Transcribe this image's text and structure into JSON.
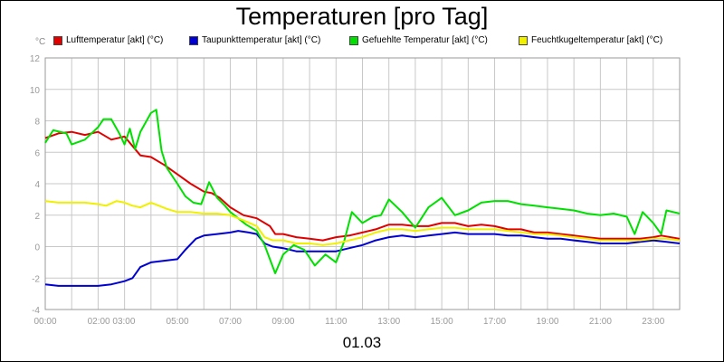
{
  "chart_data": {
    "type": "line",
    "title": "Temperaturen [pro Tag]",
    "date": "01.03",
    "ylabel": "°C",
    "ylim": [
      -4,
      12
    ],
    "yticks": [
      -4,
      -2,
      0,
      2,
      4,
      6,
      8,
      10,
      12
    ],
    "xlim": [
      0,
      24
    ],
    "xtick_labels": [
      {
        "x": 0,
        "label": "00:00"
      },
      {
        "x": 2.5,
        "label": "02:00 03:00"
      },
      {
        "x": 5,
        "label": "05:00"
      },
      {
        "x": 7,
        "label": "07:00"
      },
      {
        "x": 9,
        "label": "09:00"
      },
      {
        "x": 11,
        "label": "11:00"
      },
      {
        "x": 13,
        "label": "13:00"
      },
      {
        "x": 15,
        "label": "15:00"
      },
      {
        "x": 17,
        "label": "17:00"
      },
      {
        "x": 19,
        "label": "19:00"
      },
      {
        "x": 21,
        "label": "21:00"
      },
      {
        "x": 23,
        "label": "23:00"
      }
    ],
    "grid": true,
    "legend_position": "top",
    "series": [
      {
        "name": "Lufttemperatur [akt] (°C)",
        "color": "#e00000",
        "points": [
          [
            0,
            6.9
          ],
          [
            0.5,
            7.2
          ],
          [
            1,
            7.3
          ],
          [
            1.5,
            7.1
          ],
          [
            2,
            7.3
          ],
          [
            2.5,
            6.8
          ],
          [
            3,
            7
          ],
          [
            3.3,
            6.4
          ],
          [
            3.6,
            5.8
          ],
          [
            4,
            5.7
          ],
          [
            4.5,
            5.2
          ],
          [
            5,
            4.6
          ],
          [
            5.5,
            4
          ],
          [
            6,
            3.5
          ],
          [
            6.3,
            3.4
          ],
          [
            6.6,
            3.1
          ],
          [
            7,
            2.5
          ],
          [
            7.5,
            2
          ],
          [
            8,
            1.8
          ],
          [
            8.5,
            1.3
          ],
          [
            8.7,
            0.8
          ],
          [
            9,
            0.8
          ],
          [
            9.5,
            0.6
          ],
          [
            10,
            0.5
          ],
          [
            10.5,
            0.4
          ],
          [
            11,
            0.6
          ],
          [
            11.5,
            0.7
          ],
          [
            12,
            0.9
          ],
          [
            12.5,
            1.1
          ],
          [
            13,
            1.4
          ],
          [
            13.5,
            1.4
          ],
          [
            14,
            1.3
          ],
          [
            14.5,
            1.3
          ],
          [
            15,
            1.5
          ],
          [
            15.5,
            1.5
          ],
          [
            16,
            1.3
          ],
          [
            16.5,
            1.4
          ],
          [
            17,
            1.3
          ],
          [
            17.5,
            1.1
          ],
          [
            18,
            1.1
          ],
          [
            18.5,
            0.9
          ],
          [
            19,
            0.9
          ],
          [
            19.5,
            0.8
          ],
          [
            20,
            0.7
          ],
          [
            20.5,
            0.6
          ],
          [
            21,
            0.5
          ],
          [
            21.5,
            0.5
          ],
          [
            22,
            0.5
          ],
          [
            22.5,
            0.5
          ],
          [
            23,
            0.6
          ],
          [
            23.3,
            0.7
          ],
          [
            24,
            0.5
          ]
        ]
      },
      {
        "name": "Taupunkttemperatur [akt] (°C)",
        "color": "#0000d0",
        "points": [
          [
            0,
            -2.4
          ],
          [
            0.5,
            -2.5
          ],
          [
            1,
            -2.5
          ],
          [
            1.5,
            -2.5
          ],
          [
            2,
            -2.5
          ],
          [
            2.5,
            -2.4
          ],
          [
            3,
            -2.2
          ],
          [
            3.3,
            -2
          ],
          [
            3.6,
            -1.3
          ],
          [
            4,
            -1
          ],
          [
            4.5,
            -0.9
          ],
          [
            5,
            -0.8
          ],
          [
            5.3,
            -0.2
          ],
          [
            5.7,
            0.5
          ],
          [
            6,
            0.7
          ],
          [
            6.5,
            0.8
          ],
          [
            7,
            0.9
          ],
          [
            7.3,
            1
          ],
          [
            7.7,
            0.9
          ],
          [
            8,
            0.8
          ],
          [
            8.3,
            0.2
          ],
          [
            8.6,
            0
          ],
          [
            9,
            -0.1
          ],
          [
            9.5,
            -0.3
          ],
          [
            10,
            -0.3
          ],
          [
            10.5,
            -0.3
          ],
          [
            11,
            -0.3
          ],
          [
            11.5,
            -0.1
          ],
          [
            12,
            0.1
          ],
          [
            12.5,
            0.4
          ],
          [
            13,
            0.6
          ],
          [
            13.5,
            0.7
          ],
          [
            14,
            0.6
          ],
          [
            14.5,
            0.7
          ],
          [
            15,
            0.8
          ],
          [
            15.5,
            0.9
          ],
          [
            16,
            0.8
          ],
          [
            16.5,
            0.8
          ],
          [
            17,
            0.8
          ],
          [
            17.5,
            0.7
          ],
          [
            18,
            0.7
          ],
          [
            18.5,
            0.6
          ],
          [
            19,
            0.5
          ],
          [
            19.5,
            0.5
          ],
          [
            20,
            0.4
          ],
          [
            20.5,
            0.3
          ],
          [
            21,
            0.2
          ],
          [
            21.5,
            0.2
          ],
          [
            22,
            0.2
          ],
          [
            22.5,
            0.3
          ],
          [
            23,
            0.4
          ],
          [
            23.5,
            0.3
          ],
          [
            24,
            0.2
          ]
        ]
      },
      {
        "name": "Gefuehlte Temperatur [akt] (°C)",
        "color": "#00e000",
        "points": [
          [
            0,
            6.6
          ],
          [
            0.3,
            7.4
          ],
          [
            0.8,
            7.2
          ],
          [
            1,
            6.5
          ],
          [
            1.5,
            6.8
          ],
          [
            2,
            7.6
          ],
          [
            2.2,
            8.1
          ],
          [
            2.5,
            8.1
          ],
          [
            2.8,
            7.2
          ],
          [
            3,
            6.5
          ],
          [
            3.2,
            7.5
          ],
          [
            3.4,
            6.2
          ],
          [
            3.6,
            7.3
          ],
          [
            4,
            8.5
          ],
          [
            4.2,
            8.7
          ],
          [
            4.4,
            6.1
          ],
          [
            4.6,
            5
          ],
          [
            5,
            4
          ],
          [
            5.3,
            3.2
          ],
          [
            5.6,
            2.8
          ],
          [
            5.9,
            2.7
          ],
          [
            6.2,
            4.1
          ],
          [
            6.5,
            3.1
          ],
          [
            6.8,
            2.6
          ],
          [
            7,
            2.2
          ],
          [
            7.3,
            1.8
          ],
          [
            7.6,
            1.4
          ],
          [
            8,
            1
          ],
          [
            8.3,
            0.1
          ],
          [
            8.7,
            -1.7
          ],
          [
            9,
            -0.5
          ],
          [
            9.4,
            0.1
          ],
          [
            9.8,
            -0.2
          ],
          [
            10.2,
            -1.2
          ],
          [
            10.6,
            -0.5
          ],
          [
            11,
            -1
          ],
          [
            11.3,
            0.3
          ],
          [
            11.6,
            2.2
          ],
          [
            12,
            1.5
          ],
          [
            12.4,
            1.9
          ],
          [
            12.7,
            2
          ],
          [
            13,
            3
          ],
          [
            13.5,
            2.2
          ],
          [
            14,
            1.2
          ],
          [
            14.5,
            2.5
          ],
          [
            15,
            3.1
          ],
          [
            15.5,
            2
          ],
          [
            16,
            2.3
          ],
          [
            16.5,
            2.8
          ],
          [
            17,
            2.9
          ],
          [
            17.5,
            2.9
          ],
          [
            18,
            2.7
          ],
          [
            18.5,
            2.6
          ],
          [
            19,
            2.5
          ],
          [
            19.5,
            2.4
          ],
          [
            20,
            2.3
          ],
          [
            20.5,
            2.1
          ],
          [
            21,
            2
          ],
          [
            21.5,
            2.1
          ],
          [
            22,
            1.9
          ],
          [
            22.3,
            0.8
          ],
          [
            22.6,
            2.2
          ],
          [
            23,
            1.5
          ],
          [
            23.3,
            0.8
          ],
          [
            23.5,
            2.3
          ],
          [
            24,
            2.1
          ]
        ]
      },
      {
        "name": "Feuchtkugeltemperatur [akt] (°C)",
        "color": "#f0f000",
        "points": [
          [
            0,
            2.9
          ],
          [
            0.5,
            2.8
          ],
          [
            1,
            2.8
          ],
          [
            1.5,
            2.8
          ],
          [
            2,
            2.7
          ],
          [
            2.3,
            2.6
          ],
          [
            2.7,
            2.9
          ],
          [
            3,
            2.8
          ],
          [
            3.3,
            2.6
          ],
          [
            3.6,
            2.5
          ],
          [
            4,
            2.8
          ],
          [
            4.3,
            2.6
          ],
          [
            4.6,
            2.4
          ],
          [
            5,
            2.2
          ],
          [
            5.5,
            2.2
          ],
          [
            6,
            2.1
          ],
          [
            6.5,
            2.1
          ],
          [
            7,
            2
          ],
          [
            7.3,
            1.8
          ],
          [
            7.6,
            1.6
          ],
          [
            8,
            1.3
          ],
          [
            8.3,
            0.6
          ],
          [
            8.6,
            0.4
          ],
          [
            9,
            0.4
          ],
          [
            9.5,
            0.2
          ],
          [
            10,
            0.2
          ],
          [
            10.5,
            0.1
          ],
          [
            11,
            0.2
          ],
          [
            11.5,
            0.4
          ],
          [
            12,
            0.6
          ],
          [
            12.5,
            0.9
          ],
          [
            13,
            1.1
          ],
          [
            13.5,
            1.1
          ],
          [
            14,
            1
          ],
          [
            14.5,
            1.1
          ],
          [
            15,
            1.2
          ],
          [
            15.5,
            1.2
          ],
          [
            16,
            1.1
          ],
          [
            16.5,
            1.1
          ],
          [
            17,
            1.1
          ],
          [
            17.5,
            1
          ],
          [
            18,
            0.9
          ],
          [
            18.5,
            0.8
          ],
          [
            19,
            0.8
          ],
          [
            19.5,
            0.7
          ],
          [
            20,
            0.6
          ],
          [
            20.5,
            0.5
          ],
          [
            21,
            0.4
          ],
          [
            21.5,
            0.4
          ],
          [
            22,
            0.4
          ],
          [
            22.5,
            0.4
          ],
          [
            23,
            0.5
          ],
          [
            23.5,
            0.5
          ],
          [
            24,
            0.4
          ]
        ]
      }
    ]
  }
}
